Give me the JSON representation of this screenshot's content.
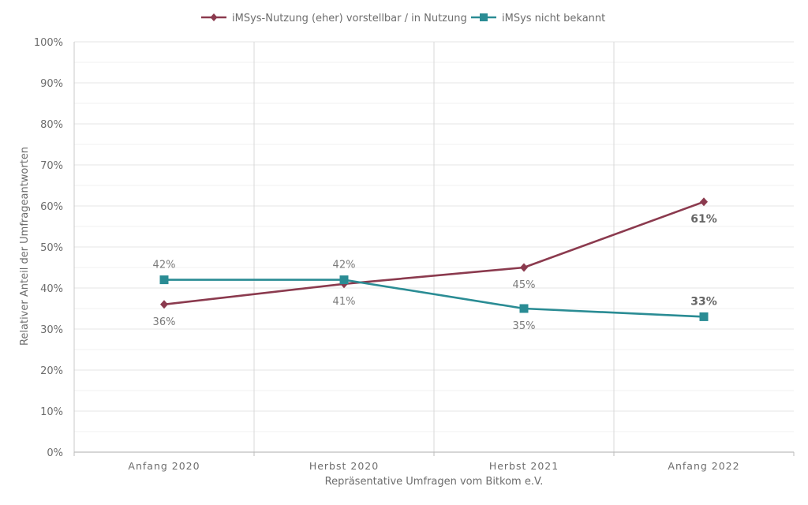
{
  "chart_data": {
    "type": "line",
    "title": "",
    "xlabel": "Repräsentative Umfragen vom Bitkom e.V.",
    "ylabel": "Relativer Anteil der Umfrageantworten",
    "categories": [
      "Anfang 2020",
      "Herbst 2020",
      "Herbst 2021",
      "Anfang 2022"
    ],
    "ylim": [
      0,
      100
    ],
    "yticks": [
      0,
      10,
      20,
      30,
      40,
      50,
      60,
      70,
      80,
      90,
      100
    ],
    "ytick_labels": [
      "0%",
      "10%",
      "20%",
      "30%",
      "40%",
      "50%",
      "60%",
      "70%",
      "80%",
      "90%",
      "100%"
    ],
    "grid": true,
    "legend_position": "top-center",
    "series": [
      {
        "name": "iMSys-Nutzung (eher) vorstellbar / in Nutzung",
        "values": [
          36,
          41,
          45,
          61
        ],
        "labels": [
          "36%",
          "41%",
          "45%",
          "61%"
        ],
        "label_positions": [
          "below",
          "below",
          "below",
          "below"
        ],
        "bold_labels": [
          false,
          false,
          false,
          true
        ],
        "color": "#8b3a4e",
        "marker": "diamond"
      },
      {
        "name": "iMSys nicht bekannt",
        "values": [
          42,
          42,
          35,
          33
        ],
        "labels": [
          "42%",
          "42%",
          "35%",
          "33%"
        ],
        "label_positions": [
          "above",
          "above",
          "below",
          "above"
        ],
        "bold_labels": [
          false,
          false,
          false,
          true
        ],
        "color": "#2a8c94",
        "marker": "square"
      }
    ]
  }
}
